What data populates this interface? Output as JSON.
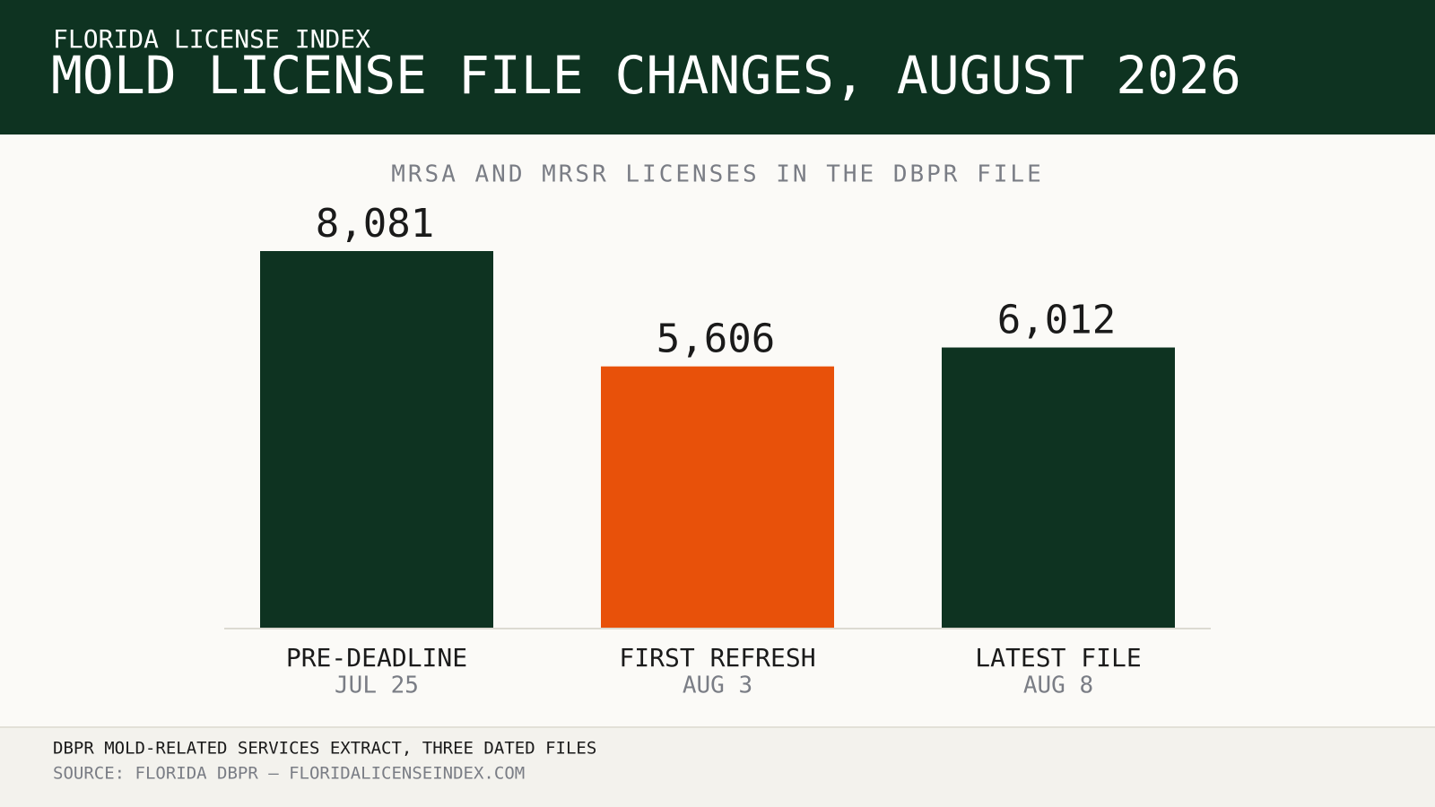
{
  "header": {
    "kicker": "FLORIDA LICENSE INDEX",
    "title": "MOLD LICENSE FILE CHANGES, AUGUST 2026"
  },
  "chart_data": {
    "type": "bar",
    "subtitle": "MRSA AND MRSR LICENSES IN THE DBPR FILE",
    "categories": [
      "PRE-DEADLINE",
      "FIRST REFRESH",
      "LATEST FILE"
    ],
    "dates": [
      "JUL 25",
      "AUG 3",
      "AUG 8"
    ],
    "values": [
      8081,
      5606,
      6012
    ],
    "value_labels": [
      "8,081",
      "5,606",
      "6,012"
    ],
    "colors": [
      "#0e3321",
      "#e8510a",
      "#0e3321"
    ]
  },
  "footer": {
    "note": "DBPR MOLD-RELATED SERVICES EXTRACT, THREE DATED FILES",
    "source": "SOURCE: FLORIDA DBPR — FLORIDALICENSEINDEX.COM"
  }
}
